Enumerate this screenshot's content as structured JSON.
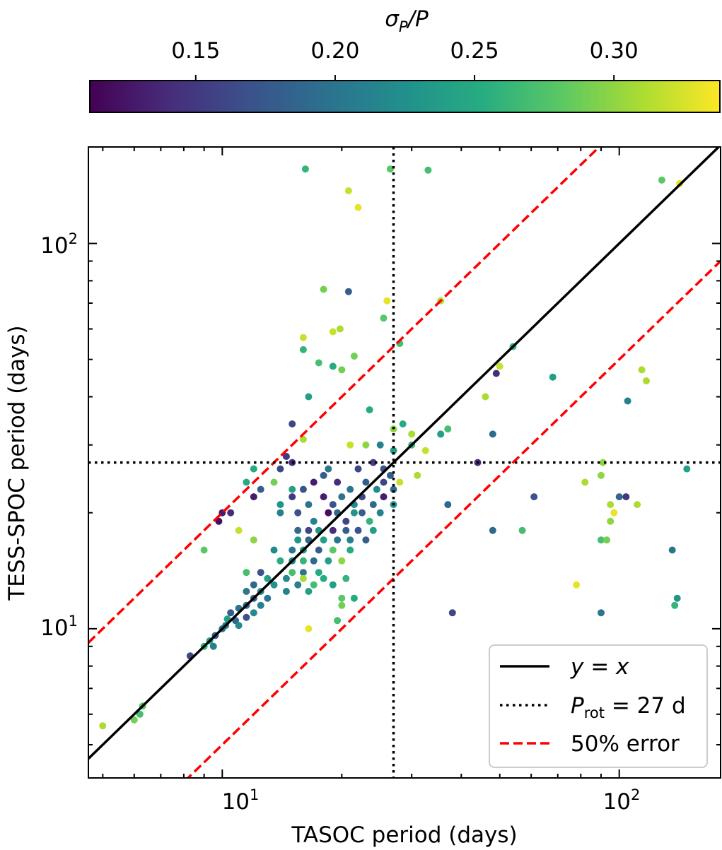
{
  "chart_data": {
    "type": "scatter",
    "xscale": "log",
    "yscale": "log",
    "xlim": [
      4.6,
      180
    ],
    "ylim": [
      4.1,
      178
    ],
    "xlabel": "TASOC period (days)",
    "ylabel": "TESS-SPOC period (days)",
    "x_ticks": [
      {
        "value": 10,
        "base": "10",
        "exp": "1"
      },
      {
        "value": 100,
        "base": "10",
        "exp": "2"
      }
    ],
    "y_ticks": [
      {
        "value": 10,
        "base": "10",
        "exp": "1"
      },
      {
        "value": 100,
        "base": "10",
        "exp": "2"
      }
    ],
    "colorbar": {
      "label_var": "σ",
      "label_sub": "P",
      "label_rest": "/P",
      "colormap": "viridis",
      "range": [
        0.112,
        0.338
      ],
      "ticks": [
        "0.15",
        "0.20",
        "0.25",
        "0.30"
      ],
      "tick_values": [
        0.15,
        0.2,
        0.25,
        0.3
      ]
    },
    "reference_lines": {
      "identity": "y = x",
      "period_threshold": 27,
      "error_fraction": 0.5
    },
    "legend": {
      "position": "lower-right",
      "entries": [
        {
          "style": "solid",
          "color": "#000000",
          "math": "y = x"
        },
        {
          "style": "dotted",
          "color": "#000000",
          "math_var": "P",
          "math_sub": "rot",
          "math_rest": " = 27 d"
        },
        {
          "style": "dashed",
          "color": "#ff0000",
          "text": "50% error"
        }
      ]
    },
    "points": [
      [
        16.2,
        156,
        0.26
      ],
      [
        26.5,
        156,
        0.28
      ],
      [
        33.0,
        155,
        0.27
      ],
      [
        20.8,
        137,
        0.32
      ],
      [
        22.0,
        124,
        0.33
      ],
      [
        128,
        146,
        0.28
      ],
      [
        142,
        143,
        0.33
      ],
      [
        20.8,
        75,
        0.18
      ],
      [
        18.0,
        76,
        0.29
      ],
      [
        26.0,
        71,
        0.33
      ],
      [
        35.5,
        71,
        0.31
      ],
      [
        25.5,
        64,
        0.28
      ],
      [
        19.0,
        59,
        0.32
      ],
      [
        19.8,
        60,
        0.31
      ],
      [
        16.0,
        57,
        0.32
      ],
      [
        28.0,
        55,
        0.27
      ],
      [
        54.0,
        54,
        0.26
      ],
      [
        16.0,
        53,
        0.26
      ],
      [
        21.5,
        51,
        0.29
      ],
      [
        17.5,
        49,
        0.27
      ],
      [
        19.0,
        48,
        0.25
      ],
      [
        20.0,
        47,
        0.29
      ],
      [
        50.0,
        48,
        0.32
      ],
      [
        49.0,
        46,
        0.14
      ],
      [
        68.0,
        45,
        0.24
      ],
      [
        114,
        47,
        0.31
      ],
      [
        117,
        44,
        0.31
      ],
      [
        46.0,
        40,
        0.31
      ],
      [
        16.5,
        40,
        0.24
      ],
      [
        23.5,
        37,
        0.25
      ],
      [
        105,
        39,
        0.21
      ],
      [
        28.5,
        34,
        0.25
      ],
      [
        27.0,
        33,
        0.3
      ],
      [
        37.0,
        33,
        0.27
      ],
      [
        30.0,
        32,
        0.31
      ],
      [
        35.5,
        32,
        0.27
      ],
      [
        16.0,
        31,
        0.31
      ],
      [
        15.0,
        34,
        0.16
      ],
      [
        48.0,
        32,
        0.19
      ],
      [
        35.5,
        32,
        0.24
      ],
      [
        25.0,
        30,
        0.21
      ],
      [
        23.0,
        30,
        0.3
      ],
      [
        21.0,
        30,
        0.32
      ],
      [
        27.0,
        29,
        0.24
      ],
      [
        30.0,
        30,
        0.26
      ],
      [
        32.5,
        29,
        0.32
      ],
      [
        14.5,
        28,
        0.15
      ],
      [
        44.0,
        27,
        0.14
      ],
      [
        91.0,
        27,
        0.3
      ],
      [
        148,
        26,
        0.24
      ],
      [
        12.0,
        26,
        0.25
      ],
      [
        14.0,
        26,
        0.16
      ],
      [
        15.0,
        27,
        0.14
      ],
      [
        18.5,
        26,
        0.2
      ],
      [
        22.0,
        26,
        0.16
      ],
      [
        24.0,
        27,
        0.15
      ],
      [
        25.5,
        26,
        0.17
      ],
      [
        26.5,
        25,
        0.18
      ],
      [
        28.0,
        24,
        0.32
      ],
      [
        31.0,
        25,
        0.31
      ],
      [
        13.5,
        24,
        0.29
      ],
      [
        11.5,
        24,
        0.25
      ],
      [
        12.5,
        23,
        0.18
      ],
      [
        15.0,
        23,
        0.24
      ],
      [
        16.0,
        23,
        0.17
      ],
      [
        17.0,
        24,
        0.13
      ],
      [
        18.0,
        25,
        0.18
      ],
      [
        19.5,
        24,
        0.14
      ],
      [
        21.0,
        23,
        0.2
      ],
      [
        23.0,
        24,
        0.18
      ],
      [
        24.5,
        23,
        0.22
      ],
      [
        25.5,
        24,
        0.16
      ],
      [
        27.0,
        23,
        0.19
      ],
      [
        82.0,
        24,
        0.31
      ],
      [
        90.0,
        25,
        0.3
      ],
      [
        12.0,
        22,
        0.13
      ],
      [
        14.0,
        21,
        0.23
      ],
      [
        15.0,
        22,
        0.15
      ],
      [
        16.5,
        21,
        0.2
      ],
      [
        18.0,
        22,
        0.13
      ],
      [
        19.0,
        21,
        0.17
      ],
      [
        20.0,
        22,
        0.2
      ],
      [
        21.5,
        21,
        0.22
      ],
      [
        22.5,
        22,
        0.16
      ],
      [
        24.0,
        21,
        0.19
      ],
      [
        25.5,
        22,
        0.13
      ],
      [
        27.0,
        21,
        0.23
      ],
      [
        61.0,
        22,
        0.17
      ],
      [
        104,
        22,
        0.15
      ],
      [
        100,
        22,
        0.19
      ],
      [
        10.5,
        20,
        0.14
      ],
      [
        10.0,
        20,
        0.13
      ],
      [
        14.0,
        20,
        0.21
      ],
      [
        15.5,
        20,
        0.17
      ],
      [
        17.0,
        19,
        0.21
      ],
      [
        18.5,
        20,
        0.12
      ],
      [
        19.5,
        20,
        0.19
      ],
      [
        20.5,
        19,
        0.16
      ],
      [
        21.5,
        20,
        0.23
      ],
      [
        22.5,
        20,
        0.18
      ],
      [
        23.5,
        19,
        0.26
      ],
      [
        25.0,
        20,
        0.21
      ],
      [
        37.0,
        21,
        0.19
      ],
      [
        95.0,
        21,
        0.31
      ],
      [
        111,
        21,
        0.31
      ],
      [
        9.8,
        19,
        0.12
      ],
      [
        15.5,
        18,
        0.19
      ],
      [
        16.5,
        18,
        0.16
      ],
      [
        17.5,
        18,
        0.23
      ],
      [
        19.0,
        18,
        0.14
      ],
      [
        20.5,
        18,
        0.18
      ],
      [
        22.0,
        18,
        0.17
      ],
      [
        24.0,
        18,
        0.24
      ],
      [
        48.0,
        18,
        0.19
      ],
      [
        57.0,
        18,
        0.27
      ],
      [
        95.0,
        19,
        0.3
      ],
      [
        97.0,
        20,
        0.33
      ],
      [
        11.0,
        18,
        0.32
      ],
      [
        15.5,
        17,
        0.23
      ],
      [
        16.5,
        17,
        0.19
      ],
      [
        18.0,
        17,
        0.24
      ],
      [
        19.5,
        17,
        0.2
      ],
      [
        21.0,
        17,
        0.21
      ],
      [
        23.0,
        17,
        0.18
      ],
      [
        90.0,
        17,
        0.27
      ],
      [
        93.0,
        17,
        0.29
      ],
      [
        13.5,
        16,
        0.22
      ],
      [
        15.0,
        16,
        0.2
      ],
      [
        16.0,
        16,
        0.23
      ],
      [
        17.5,
        16,
        0.18
      ],
      [
        19.0,
        16,
        0.28
      ],
      [
        21.0,
        16,
        0.25
      ],
      [
        9.0,
        16,
        0.28
      ],
      [
        136,
        16,
        0.2
      ],
      [
        14.0,
        15,
        0.25
      ],
      [
        15.0,
        15,
        0.22
      ],
      [
        16.0,
        15,
        0.26
      ],
      [
        17.0,
        15,
        0.19
      ],
      [
        18.5,
        15,
        0.24
      ],
      [
        20.0,
        15,
        0.3
      ],
      [
        15.0,
        14,
        0.27
      ],
      [
        16.0,
        14,
        0.2
      ],
      [
        17.5,
        14,
        0.25
      ],
      [
        12.5,
        14,
        0.17
      ],
      [
        11.5,
        14,
        0.27
      ],
      [
        13.0,
        13.5,
        0.24
      ],
      [
        14.5,
        13.5,
        0.22
      ],
      [
        16.0,
        13.5,
        0.31
      ],
      [
        18.0,
        13.5,
        0.25
      ],
      [
        20.5,
        13.5,
        0.26
      ],
      [
        12.0,
        13,
        0.19
      ],
      [
        13.5,
        13,
        0.23
      ],
      [
        15.5,
        13,
        0.21
      ],
      [
        17.0,
        13,
        0.27
      ],
      [
        19.0,
        13,
        0.24
      ],
      [
        78.0,
        13,
        0.33
      ],
      [
        11.5,
        12.5,
        0.2
      ],
      [
        12.5,
        12.5,
        0.22
      ],
      [
        14.5,
        12.5,
        0.21
      ],
      [
        16.5,
        12.5,
        0.24
      ],
      [
        12.0,
        12.0,
        0.18
      ],
      [
        13.0,
        12.0,
        0.2
      ],
      [
        11.5,
        11.5,
        0.19
      ],
      [
        12.5,
        11.5,
        0.21
      ],
      [
        20.0,
        12,
        0.28
      ],
      [
        21.5,
        12,
        0.25
      ],
      [
        140,
        12,
        0.23
      ],
      [
        138,
        11.5,
        0.26
      ],
      [
        11.0,
        11.3,
        0.2
      ],
      [
        12.0,
        11.0,
        0.22
      ],
      [
        20.0,
        11.5,
        0.29
      ],
      [
        38.0,
        11,
        0.16
      ],
      [
        90.0,
        11,
        0.2
      ],
      [
        10.5,
        11.0,
        0.18
      ],
      [
        11.5,
        10.7,
        0.17
      ],
      [
        10.3,
        10.6,
        0.24
      ],
      [
        10.8,
        10.5,
        0.19
      ],
      [
        19.5,
        10.5,
        0.27
      ],
      [
        10.2,
        10.2,
        0.21
      ],
      [
        11.0,
        10.2,
        0.22
      ],
      [
        10.0,
        10.0,
        0.2
      ],
      [
        16.5,
        10.0,
        0.33
      ],
      [
        9.6,
        9.6,
        0.18
      ],
      [
        9.3,
        9.3,
        0.24
      ],
      [
        9.5,
        9.0,
        0.21
      ],
      [
        9.0,
        9.0,
        0.26
      ],
      [
        8.3,
        8.5,
        0.16
      ],
      [
        6.3,
        6.3,
        0.28
      ],
      [
        6.2,
        6.0,
        0.27
      ],
      [
        6.0,
        5.8,
        0.29
      ],
      [
        5.0,
        5.6,
        0.31
      ],
      [
        12.0,
        17,
        0.3
      ]
    ]
  }
}
